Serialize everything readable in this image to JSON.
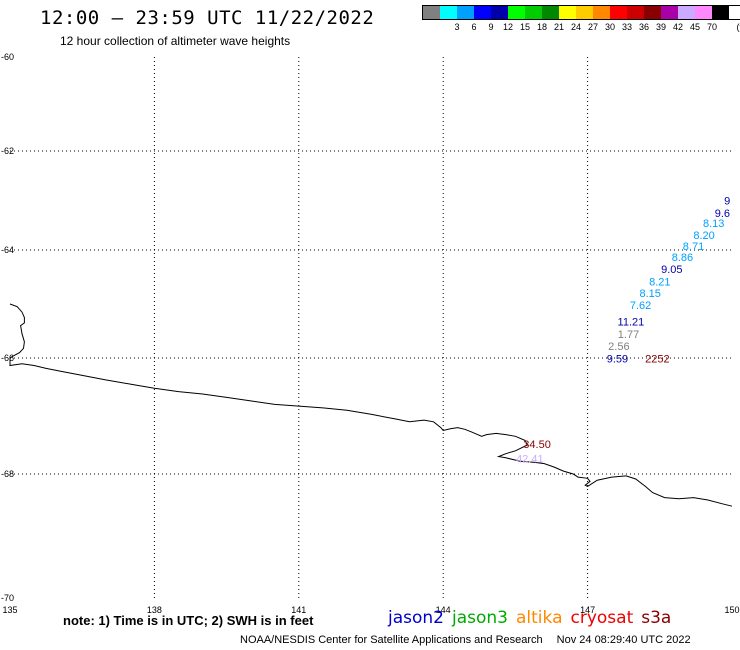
{
  "header": {
    "title": "12:00 – 23:59 UTC 11/22/2022",
    "subtitle": "12 hour collection of altimeter wave heights"
  },
  "legend": {
    "unit": "(ft)",
    "swatches": [
      {
        "color": "#808080",
        "label": ""
      },
      {
        "color": "#00ffff",
        "label": "3"
      },
      {
        "color": "#00a0ff",
        "label": "6"
      },
      {
        "color": "#0000ff",
        "label": "9"
      },
      {
        "color": "#0000aa",
        "label": "12"
      },
      {
        "color": "#00ff00",
        "label": "15"
      },
      {
        "color": "#00cc00",
        "label": "18"
      },
      {
        "color": "#008800",
        "label": "21"
      },
      {
        "color": "#ffff00",
        "label": "24"
      },
      {
        "color": "#ffcc00",
        "label": "27"
      },
      {
        "color": "#ff8800",
        "label": "30"
      },
      {
        "color": "#ff0000",
        "label": "33"
      },
      {
        "color": "#cc0000",
        "label": "36"
      },
      {
        "color": "#880000",
        "label": "39"
      },
      {
        "color": "#aa00aa",
        "label": "42"
      },
      {
        "color": "#ccaaff",
        "label": "45"
      },
      {
        "color": "#ff88ff",
        "label": "70"
      },
      {
        "color": "#000000",
        "label": ""
      }
    ]
  },
  "map": {
    "lon_range": [
      135,
      150
    ],
    "lat_range": [
      -60,
      -70
    ],
    "lon_ticks": [
      {
        "value": 135,
        "label": "135"
      },
      {
        "value": 138,
        "label": "138"
      },
      {
        "value": 141,
        "label": "141"
      },
      {
        "value": 144,
        "label": "144"
      },
      {
        "value": 147,
        "label": "147"
      },
      {
        "value": 150,
        "label": "150"
      }
    ],
    "lat_ticks": [
      {
        "value": -60,
        "label": "-60"
      },
      {
        "value": -62,
        "label": "-62"
      },
      {
        "value": -64,
        "label": "-64"
      },
      {
        "value": -66,
        "label": "-66"
      },
      {
        "value": -68,
        "label": "-68"
      },
      {
        "value": -70,
        "label": "-70"
      }
    ],
    "wave_labels": [
      {
        "text": "9",
        "lon": 149.9,
        "lat": -63.0,
        "color": "#0000aa"
      },
      {
        "text": "9.6",
        "lon": 149.8,
        "lat": -63.25,
        "color": "#0000aa"
      },
      {
        "text": "8.13",
        "lon": 149.62,
        "lat": -63.45,
        "color": "#00a0ff"
      },
      {
        "text": "8.20",
        "lon": 149.42,
        "lat": -63.7,
        "color": "#00a0ff"
      },
      {
        "text": "8.71",
        "lon": 149.2,
        "lat": -63.92,
        "color": "#00a0ff"
      },
      {
        "text": "8.86",
        "lon": 148.97,
        "lat": -64.13,
        "color": "#00a0ff"
      },
      {
        "text": "9.05",
        "lon": 148.75,
        "lat": -64.35,
        "color": "#0000aa"
      },
      {
        "text": "8.21",
        "lon": 148.5,
        "lat": -64.58,
        "color": "#00a0ff"
      },
      {
        "text": "8.15",
        "lon": 148.3,
        "lat": -64.8,
        "color": "#00a0ff"
      },
      {
        "text": "7.62",
        "lon": 148.1,
        "lat": -65.02,
        "color": "#00a0ff"
      },
      {
        "text": "11.21",
        "lon": 147.9,
        "lat": -65.32,
        "color": "#0000aa"
      },
      {
        "text": "1.77",
        "lon": 147.85,
        "lat": -65.56,
        "color": "#808080"
      },
      {
        "text": "2.56",
        "lon": 147.65,
        "lat": -65.78,
        "color": "#808080"
      },
      {
        "text": "9.59",
        "lon": 147.62,
        "lat": -66.01,
        "color": "#0000aa"
      },
      {
        "text": "2252",
        "lon": 148.45,
        "lat": -66.01,
        "color": "#880000"
      },
      {
        "text": "34.50",
        "lon": 145.95,
        "lat": -67.48,
        "color": "#880000"
      },
      {
        "text": "42.41",
        "lon": 145.8,
        "lat": -67.73,
        "color": "#ccaaff"
      }
    ],
    "coastline": [
      [
        135.0,
        -65.0
      ],
      [
        135.15,
        -65.05
      ],
      [
        135.25,
        -65.15
      ],
      [
        135.3,
        -65.25
      ],
      [
        135.3,
        -65.35
      ],
      [
        135.22,
        -65.4
      ],
      [
        135.25,
        -65.55
      ],
      [
        135.3,
        -65.7
      ],
      [
        135.28,
        -65.82
      ],
      [
        135.2,
        -65.9
      ],
      [
        135.05,
        -65.97
      ],
      [
        135.0,
        -66.0
      ],
      [
        135.0,
        -66.13
      ],
      [
        135.25,
        -66.1
      ],
      [
        135.5,
        -66.13
      ],
      [
        135.75,
        -66.18
      ],
      [
        136.0,
        -66.22
      ],
      [
        136.5,
        -66.3
      ],
      [
        137.0,
        -66.38
      ],
      [
        137.5,
        -66.45
      ],
      [
        138.0,
        -66.52
      ],
      [
        138.5,
        -66.58
      ],
      [
        139.0,
        -66.62
      ],
      [
        139.5,
        -66.68
      ],
      [
        140.0,
        -66.74
      ],
      [
        140.5,
        -66.8
      ],
      [
        141.0,
        -66.83
      ],
      [
        141.5,
        -66.86
      ],
      [
        142.0,
        -66.9
      ],
      [
        142.5,
        -66.97
      ],
      [
        143.0,
        -67.05
      ],
      [
        143.3,
        -67.1
      ],
      [
        143.6,
        -67.07
      ],
      [
        143.8,
        -67.1
      ],
      [
        143.95,
        -67.2
      ],
      [
        144.0,
        -67.25
      ],
      [
        144.15,
        -67.22
      ],
      [
        144.3,
        -67.2
      ],
      [
        144.45,
        -67.23
      ],
      [
        144.6,
        -67.28
      ],
      [
        144.8,
        -67.35
      ],
      [
        144.9,
        -67.32
      ],
      [
        145.1,
        -67.3
      ],
      [
        145.3,
        -67.32
      ],
      [
        145.5,
        -67.35
      ],
      [
        145.7,
        -67.42
      ],
      [
        145.75,
        -67.5
      ],
      [
        145.5,
        -67.6
      ],
      [
        145.3,
        -67.65
      ],
      [
        145.15,
        -67.7
      ],
      [
        145.3,
        -67.72
      ],
      [
        145.6,
        -67.78
      ],
      [
        145.9,
        -67.8
      ],
      [
        146.1,
        -67.82
      ],
      [
        146.3,
        -67.88
      ],
      [
        146.5,
        -67.95
      ],
      [
        146.7,
        -68.0
      ],
      [
        146.8,
        -68.05
      ],
      [
        147.0,
        -68.07
      ],
      [
        147.05,
        -68.12
      ],
      [
        146.95,
        -68.18
      ],
      [
        147.0,
        -68.2
      ],
      [
        147.2,
        -68.1
      ],
      [
        147.5,
        -68.05
      ],
      [
        147.8,
        -68.03
      ],
      [
        148.0,
        -68.08
      ],
      [
        148.2,
        -68.2
      ],
      [
        148.35,
        -68.3
      ],
      [
        148.6,
        -68.38
      ],
      [
        148.9,
        -68.4
      ],
      [
        149.2,
        -68.38
      ],
      [
        149.5,
        -68.42
      ],
      [
        149.8,
        -68.48
      ],
      [
        150.0,
        -68.52
      ]
    ]
  },
  "notes": {
    "text": "note:  1) Time is in UTC;  2) SWH is in feet"
  },
  "satellites": [
    {
      "name": "jason2",
      "color": "#0000cc"
    },
    {
      "name": "jason3",
      "color": "#00aa00"
    },
    {
      "name": "altika",
      "color": "#ff8800"
    },
    {
      "name": "cryosat",
      "color": "#ee0000"
    },
    {
      "name": "s3a",
      "color": "#880000"
    }
  ],
  "footer": {
    "credit": "NOAA/NESDIS Center for Satellite Applications and Research",
    "timestamp": "Nov 24 08:29:40 UTC 2022"
  }
}
